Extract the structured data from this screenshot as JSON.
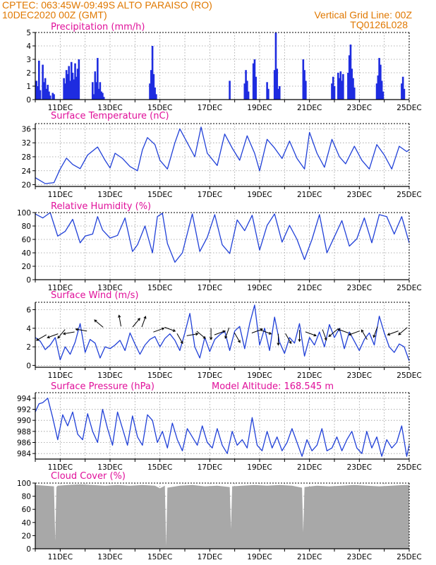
{
  "header": {
    "line1": "CPTEC:  063:45W-09:49S  ALTO PARAISO (RO)",
    "line2": "10DEC2020 00Z (GMT)",
    "grid_note": "Vertical Grid Line: 00Z",
    "run_id": "TQ0126L028"
  },
  "x_axis": {
    "start_day": 10,
    "end_day": 25,
    "tick_labels": [
      "11DEC",
      "13DEC",
      "15DEC",
      "17DEC",
      "19DEC",
      "21DEC",
      "23DEC",
      "25DEC"
    ],
    "tick_days": [
      11,
      13,
      15,
      17,
      19,
      21,
      23,
      25
    ]
  },
  "chart_data": [
    {
      "type": "bar",
      "title": "Precipitation (mm/h)",
      "ylim": [
        0,
        5
      ],
      "yticks": [
        0,
        1,
        2,
        3,
        4,
        5
      ],
      "color": "#1e2ce0",
      "events": [
        {
          "day": 10.05,
          "value": 1.4
        },
        {
          "day": 10.1,
          "value": 1.0
        },
        {
          "day": 10.15,
          "value": 2.9
        },
        {
          "day": 10.2,
          "value": 0.7
        },
        {
          "day": 10.3,
          "value": 2.6
        },
        {
          "day": 10.35,
          "value": 1.3
        },
        {
          "day": 10.4,
          "value": 1.6
        },
        {
          "day": 10.45,
          "value": 0.8
        },
        {
          "day": 10.5,
          "value": 1.1
        },
        {
          "day": 10.55,
          "value": 0.6
        },
        {
          "day": 10.6,
          "value": 0.3
        },
        {
          "day": 10.7,
          "value": 0.5
        },
        {
          "day": 10.75,
          "value": 0.4
        },
        {
          "day": 11.15,
          "value": 1.6
        },
        {
          "day": 11.2,
          "value": 1.2
        },
        {
          "day": 11.25,
          "value": 2.2
        },
        {
          "day": 11.3,
          "value": 1.9
        },
        {
          "day": 11.35,
          "value": 2.5
        },
        {
          "day": 11.4,
          "value": 1.4
        },
        {
          "day": 11.45,
          "value": 2.8
        },
        {
          "day": 11.5,
          "value": 2.0
        },
        {
          "day": 11.55,
          "value": 1.5
        },
        {
          "day": 11.6,
          "value": 2.7
        },
        {
          "day": 11.65,
          "value": 1.7
        },
        {
          "day": 11.7,
          "value": 2.3
        },
        {
          "day": 11.75,
          "value": 3.0
        },
        {
          "day": 12.3,
          "value": 1.3
        },
        {
          "day": 12.35,
          "value": 0.4
        },
        {
          "day": 12.4,
          "value": 2.1
        },
        {
          "day": 12.45,
          "value": 1.3
        },
        {
          "day": 12.5,
          "value": 3.1
        },
        {
          "day": 12.55,
          "value": 0.8
        },
        {
          "day": 12.6,
          "value": 1.3
        },
        {
          "day": 12.65,
          "value": 0.6
        },
        {
          "day": 12.7,
          "value": 0.5
        },
        {
          "day": 12.75,
          "value": 0.2
        },
        {
          "day": 14.6,
          "value": 1.2
        },
        {
          "day": 14.65,
          "value": 2.2
        },
        {
          "day": 14.7,
          "value": 4.0
        },
        {
          "day": 14.75,
          "value": 1.9
        },
        {
          "day": 14.8,
          "value": 0.9
        },
        {
          "day": 14.85,
          "value": 0.4
        },
        {
          "day": 17.8,
          "value": 1.4
        },
        {
          "day": 18.4,
          "value": 1.2
        },
        {
          "day": 18.45,
          "value": 2.2
        },
        {
          "day": 18.5,
          "value": 1.4
        },
        {
          "day": 18.55,
          "value": 0.6
        },
        {
          "day": 18.75,
          "value": 2.7
        },
        {
          "day": 18.8,
          "value": 3.0
        },
        {
          "day": 18.85,
          "value": 1.7
        },
        {
          "day": 19.3,
          "value": 1.3
        },
        {
          "day": 19.35,
          "value": 0.8
        },
        {
          "day": 19.6,
          "value": 2.2
        },
        {
          "day": 19.65,
          "value": 5.0
        },
        {
          "day": 19.7,
          "value": 2.3
        },
        {
          "day": 19.75,
          "value": 0.8
        },
        {
          "day": 19.8,
          "value": 1.0
        },
        {
          "day": 20.75,
          "value": 3.0
        },
        {
          "day": 20.8,
          "value": 2.2
        },
        {
          "day": 20.85,
          "value": 1.4
        },
        {
          "day": 21.9,
          "value": 1.2
        },
        {
          "day": 21.95,
          "value": 1.7
        },
        {
          "day": 22.0,
          "value": 1.0
        },
        {
          "day": 22.15,
          "value": 2.0
        },
        {
          "day": 22.2,
          "value": 1.6
        },
        {
          "day": 22.25,
          "value": 2.1
        },
        {
          "day": 22.3,
          "value": 1.4
        },
        {
          "day": 22.35,
          "value": 1.9
        },
        {
          "day": 22.55,
          "value": 2.0
        },
        {
          "day": 22.6,
          "value": 3.3
        },
        {
          "day": 22.65,
          "value": 4.1
        },
        {
          "day": 22.7,
          "value": 2.3
        },
        {
          "day": 22.75,
          "value": 1.6
        },
        {
          "day": 22.8,
          "value": 0.9
        },
        {
          "day": 23.7,
          "value": 1.2
        },
        {
          "day": 23.75,
          "value": 1.8
        },
        {
          "day": 23.8,
          "value": 3.1
        },
        {
          "day": 23.85,
          "value": 2.6
        },
        {
          "day": 23.9,
          "value": 1.4
        },
        {
          "day": 23.95,
          "value": 0.6
        },
        {
          "day": 24.7,
          "value": 1.2
        },
        {
          "day": 24.75,
          "value": 1.7
        },
        {
          "day": 24.8,
          "value": 0.8
        }
      ]
    },
    {
      "type": "line",
      "title": "Surface Temperature (nC)",
      "ylim": [
        19.5,
        37.5
      ],
      "yticks": [
        20,
        24,
        28,
        32,
        36
      ],
      "color": "#2040d8",
      "x": [
        10.0,
        10.4,
        10.75,
        11.0,
        11.25,
        11.5,
        11.8,
        12.1,
        12.5,
        12.8,
        13.0,
        13.2,
        13.5,
        13.8,
        14.1,
        14.3,
        14.5,
        14.8,
        15.0,
        15.3,
        15.6,
        15.8,
        16.1,
        16.4,
        16.65,
        16.9,
        17.3,
        17.6,
        17.9,
        18.2,
        18.5,
        18.8,
        19.0,
        19.3,
        19.6,
        19.9,
        20.2,
        20.5,
        20.8,
        21.0,
        21.3,
        21.6,
        21.9,
        22.2,
        22.45,
        22.8,
        23.1,
        23.4,
        23.7,
        24.0,
        24.3,
        24.6,
        24.9,
        25.0
      ],
      "values": [
        22.0,
        20.3,
        20.6,
        24.5,
        27.6,
        25.8,
        24.6,
        28.5,
        30.8,
        27.0,
        24.8,
        29.0,
        27.5,
        25.2,
        24.0,
        30.0,
        33.5,
        31.5,
        27.0,
        24.5,
        32.0,
        36.0,
        32.0,
        28.0,
        36.5,
        29.0,
        25.5,
        34.5,
        30.5,
        27.0,
        34.0,
        29.0,
        24.0,
        33.0,
        30.5,
        27.5,
        32.5,
        27.5,
        24.5,
        35.0,
        29.0,
        25.0,
        33.0,
        28.0,
        26.0,
        31.0,
        27.0,
        24.5,
        31.5,
        28.5,
        24.5,
        31.0,
        29.5,
        30.0
      ]
    },
    {
      "type": "line",
      "title": "Relative Humidity (%)",
      "ylim": [
        0,
        100
      ],
      "yticks": [
        0,
        20,
        40,
        60,
        80,
        100
      ],
      "color": "#2040d8",
      "x": [
        10.0,
        10.3,
        10.6,
        10.9,
        11.2,
        11.5,
        11.8,
        12.0,
        12.3,
        12.5,
        12.7,
        13.0,
        13.3,
        13.6,
        13.9,
        14.1,
        14.4,
        14.7,
        14.9,
        15.1,
        15.3,
        15.6,
        15.9,
        16.3,
        16.6,
        16.9,
        17.2,
        17.5,
        17.8,
        18.1,
        18.4,
        18.7,
        19.0,
        19.3,
        19.6,
        19.9,
        20.2,
        20.5,
        20.8,
        21.1,
        21.4,
        21.7,
        22.0,
        22.3,
        22.6,
        22.9,
        23.2,
        23.5,
        23.8,
        24.1,
        24.4,
        24.7,
        25.0
      ],
      "values": [
        98.0,
        92.0,
        100.0,
        65.0,
        72.0,
        90.0,
        55.0,
        65.0,
        68.0,
        94.0,
        74.0,
        62.0,
        66.0,
        92.0,
        42.0,
        52.0,
        80.0,
        40.0,
        94.0,
        99.0,
        54.0,
        26.0,
        40.0,
        98.0,
        42.0,
        63.0,
        97.0,
        52.0,
        39.0,
        89.0,
        73.0,
        96.0,
        44.0,
        81.0,
        98.0,
        56.0,
        81.0,
        60.0,
        30.0,
        60.0,
        97.0,
        40.0,
        64.0,
        88.0,
        50.0,
        61.0,
        92.0,
        55.0,
        97.0,
        94.0,
        68.0,
        94.0,
        55.0
      ]
    },
    {
      "type": "line",
      "title": "Surface Wind (m/s)",
      "ylim": [
        -0.2,
        6.8
      ],
      "yticks": [
        0,
        2,
        4,
        6
      ],
      "color": "#2040d8",
      "x": [
        10.0,
        10.2,
        10.4,
        10.6,
        10.8,
        11.0,
        11.2,
        11.4,
        11.6,
        11.8,
        12.0,
        12.2,
        12.4,
        12.6,
        12.8,
        13.0,
        13.2,
        13.4,
        13.6,
        13.8,
        14.0,
        14.2,
        14.4,
        14.6,
        14.8,
        15.0,
        15.2,
        15.4,
        15.6,
        15.8,
        16.0,
        16.2,
        16.4,
        16.6,
        16.8,
        17.0,
        17.2,
        17.4,
        17.6,
        17.8,
        18.0,
        18.2,
        18.4,
        18.6,
        18.8,
        19.0,
        19.2,
        19.4,
        19.6,
        19.8,
        20.0,
        20.2,
        20.4,
        20.6,
        20.8,
        21.0,
        21.2,
        21.4,
        21.6,
        21.8,
        22.0,
        22.2,
        22.4,
        22.6,
        22.8,
        23.0,
        23.2,
        23.4,
        23.6,
        23.8,
        24.0,
        24.2,
        24.4,
        24.6,
        24.8,
        25.0
      ],
      "values": [
        3.0,
        2.6,
        1.7,
        2.2,
        3.0,
        0.6,
        2.0,
        1.2,
        2.5,
        4.5,
        1.4,
        2.8,
        2.4,
        0.8,
        2.0,
        1.8,
        2.2,
        2.7,
        1.6,
        3.5,
        2.3,
        1.2,
        2.2,
        2.8,
        3.1,
        2.0,
        2.9,
        3.4,
        2.7,
        1.6,
        3.5,
        5.6,
        2.0,
        0.8,
        3.0,
        1.5,
        2.8,
        3.3,
        3.7,
        1.6,
        3.7,
        4.2,
        1.8,
        4.5,
        6.5,
        2.2,
        4.0,
        1.6,
        5.2,
        2.5,
        1.3,
        3.0,
        2.4,
        4.5,
        1.0,
        3.0,
        2.2,
        3.6,
        2.0,
        4.4,
        3.0,
        4.0,
        1.8,
        3.6,
        2.6,
        1.6,
        2.8,
        3.5,
        2.2,
        5.3,
        3.5,
        2.0,
        1.4,
        2.3,
        2.0,
        0.5
      ],
      "arrows": [
        {
          "day": 10.25,
          "value": 3.0,
          "angle_deg": 210
        },
        {
          "day": 10.7,
          "value": 3.2,
          "angle_deg": 200
        },
        {
          "day": 11.05,
          "value": 3.4,
          "angle_deg": 230
        },
        {
          "day": 11.35,
          "value": 3.5,
          "angle_deg": 190
        },
        {
          "day": 11.85,
          "value": 3.8,
          "angle_deg": 170
        },
        {
          "day": 12.55,
          "value": 4.5,
          "angle_deg": 140
        },
        {
          "day": 13.4,
          "value": 4.8,
          "angle_deg": 100
        },
        {
          "day": 14.05,
          "value": 4.6,
          "angle_deg": 50
        },
        {
          "day": 14.35,
          "value": 4.7,
          "angle_deg": 70
        },
        {
          "day": 14.95,
          "value": 3.8,
          "angle_deg": 20
        },
        {
          "day": 15.4,
          "value": 3.9,
          "angle_deg": 340
        },
        {
          "day": 15.8,
          "value": 2.9,
          "angle_deg": 300
        },
        {
          "day": 16.3,
          "value": 3.3,
          "angle_deg": 10
        },
        {
          "day": 16.65,
          "value": 3.3,
          "angle_deg": 320
        },
        {
          "day": 17.05,
          "value": 3.4,
          "angle_deg": 270
        },
        {
          "day": 17.4,
          "value": 3.5,
          "angle_deg": 20
        },
        {
          "day": 17.7,
          "value": 3.5,
          "angle_deg": 250
        },
        {
          "day": 18.1,
          "value": 3.0,
          "angle_deg": 300
        },
        {
          "day": 18.9,
          "value": 3.7,
          "angle_deg": 20
        },
        {
          "day": 19.25,
          "value": 3.6,
          "angle_deg": 340
        },
        {
          "day": 19.75,
          "value": 2.8,
          "angle_deg": 270
        },
        {
          "day": 20.15,
          "value": 2.9,
          "angle_deg": 300
        },
        {
          "day": 20.6,
          "value": 3.2,
          "angle_deg": 270
        },
        {
          "day": 21.05,
          "value": 3.4,
          "angle_deg": 340
        },
        {
          "day": 21.6,
          "value": 3.3,
          "angle_deg": 290
        },
        {
          "day": 21.95,
          "value": 3.5,
          "angle_deg": 220
        },
        {
          "day": 22.35,
          "value": 3.7,
          "angle_deg": 160
        },
        {
          "day": 22.8,
          "value": 3.5,
          "angle_deg": 200
        },
        {
          "day": 23.2,
          "value": 3.3,
          "angle_deg": 120
        },
        {
          "day": 23.65,
          "value": 3.6,
          "angle_deg": 250
        },
        {
          "day": 24.35,
          "value": 3.5,
          "angle_deg": 200
        },
        {
          "day": 24.75,
          "value": 3.7,
          "angle_deg": 220
        }
      ]
    },
    {
      "type": "line",
      "title": "Surface Pressure (hPa)",
      "annotation": "Model Altitude: 168.545 m",
      "ylim": [
        983,
        995
      ],
      "yticks": [
        984,
        986,
        988,
        990,
        992,
        994
      ],
      "color": "#2040d8",
      "x": [
        10.0,
        10.15,
        10.3,
        10.5,
        10.7,
        10.9,
        11.1,
        11.3,
        11.5,
        11.7,
        11.9,
        12.1,
        12.3,
        12.5,
        12.7,
        12.9,
        13.1,
        13.3,
        13.5,
        13.7,
        13.9,
        14.1,
        14.3,
        14.5,
        14.7,
        14.9,
        15.1,
        15.3,
        15.5,
        15.7,
        15.9,
        16.1,
        16.3,
        16.5,
        16.7,
        16.9,
        17.1,
        17.3,
        17.5,
        17.7,
        17.9,
        18.1,
        18.3,
        18.5,
        18.7,
        18.9,
        19.1,
        19.3,
        19.5,
        19.7,
        19.9,
        20.1,
        20.3,
        20.5,
        20.7,
        20.9,
        21.1,
        21.3,
        21.5,
        21.7,
        21.9,
        22.1,
        22.3,
        22.5,
        22.7,
        22.9,
        23.1,
        23.3,
        23.5,
        23.7,
        23.9,
        24.1,
        24.3,
        24.5,
        24.7,
        24.9,
        25.0
      ],
      "values": [
        991.5,
        993.0,
        993.2,
        994.0,
        990.5,
        986.5,
        991.0,
        989.0,
        991.5,
        987.5,
        986.5,
        991.2,
        988.0,
        986.0,
        992.0,
        988.5,
        985.5,
        991.5,
        988.5,
        985.5,
        990.8,
        987.0,
        985.5,
        991.0,
        990.0,
        986.0,
        988.0,
        985.0,
        989.5,
        986.5,
        984.5,
        988.5,
        987.0,
        985.5,
        989.0,
        986.0,
        985.0,
        988.5,
        985.5,
        984.0,
        988.0,
        985.5,
        986.5,
        985.0,
        990.5,
        985.5,
        984.5,
        988.0,
        985.0,
        987.0,
        984.5,
        986.0,
        988.5,
        986.0,
        983.5,
        986.5,
        984.5,
        985.5,
        988.5,
        984.5,
        985.0,
        987.0,
        984.5,
        986.5,
        988.0,
        985.0,
        984.0,
        988.0,
        985.0,
        987.0,
        983.5,
        986.5,
        985.0,
        986.0,
        989.0,
        983.5,
        985.5
      ]
    },
    {
      "type": "area",
      "title": "Cloud Cover (%)",
      "ylim": [
        0,
        100
      ],
      "yticks": [
        0,
        20,
        40,
        60,
        80,
        100
      ],
      "color": "#a8a8a8",
      "x": [
        10.0,
        10.4,
        10.75,
        10.8,
        10.85,
        10.9,
        11.3,
        11.8,
        12.3,
        12.8,
        13.3,
        13.8,
        14.3,
        14.8,
        15.0,
        15.2,
        15.25,
        15.3,
        15.8,
        16.3,
        16.8,
        17.3,
        17.8,
        17.85,
        17.9,
        18.3,
        18.8,
        19.3,
        19.8,
        20.3,
        20.7,
        20.75,
        20.8,
        21.3,
        21.8,
        22.3,
        22.8,
        23.3,
        23.8,
        24.3,
        24.8,
        25.0
      ],
      "values": [
        97,
        96,
        95,
        12,
        94,
        96,
        97,
        98,
        97,
        96,
        97,
        96,
        97,
        96,
        92,
        96,
        4,
        93,
        96,
        97,
        95,
        96,
        94,
        30,
        95,
        96,
        97,
        96,
        97,
        96,
        93,
        25,
        94,
        96,
        95,
        96,
        97,
        96,
        95,
        96,
        97,
        97
      ]
    }
  ]
}
